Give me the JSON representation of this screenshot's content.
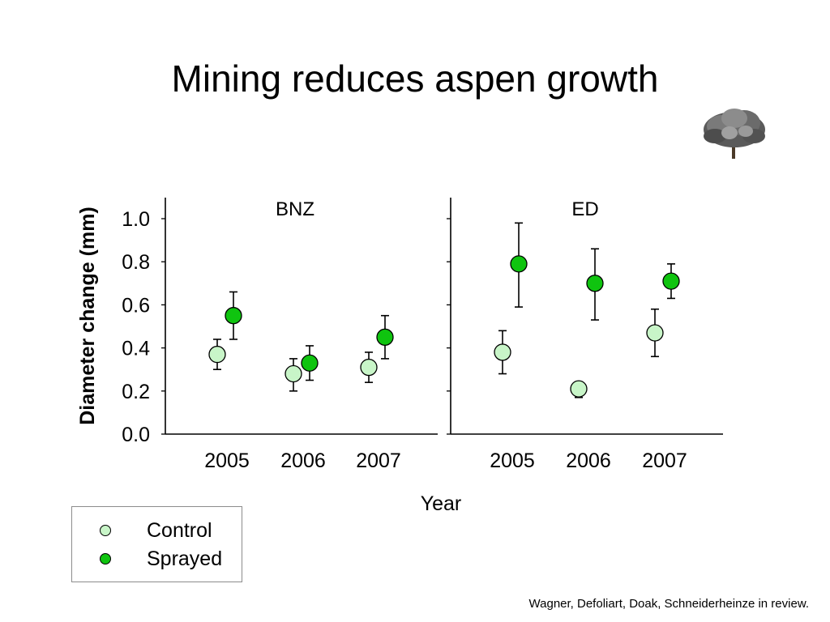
{
  "slide": {
    "title": "Mining reduces aspen growth",
    "citation": "Wagner, Defoliart, Doak, Schneiderheinze in review."
  },
  "legend": {
    "items": [
      {
        "label": "Control",
        "color": "#c8f5c8"
      },
      {
        "label": "Sprayed",
        "color": "#0fc40f"
      }
    ]
  },
  "chart_data": {
    "type": "scatter",
    "ylabel": "Diameter change (mm)",
    "xlabel": "Year",
    "ylim": [
      0.0,
      1.1
    ],
    "yticks": [
      "0.0",
      "0.2",
      "0.4",
      "0.6",
      "0.8",
      "1.0"
    ],
    "categories": [
      "2005",
      "2006",
      "2007"
    ],
    "grid": false,
    "legend_position": "bottom-left",
    "panels": [
      {
        "title": "BNZ",
        "series": [
          {
            "name": "Control",
            "color": "#c8f5c8",
            "values": [
              0.37,
              0.28,
              0.31
            ],
            "err_low": [
              0.3,
              0.2,
              0.24
            ],
            "err_high": [
              0.44,
              0.35,
              0.38
            ]
          },
          {
            "name": "Sprayed",
            "color": "#0fc40f",
            "values": [
              0.55,
              0.33,
              0.45
            ],
            "err_low": [
              0.44,
              0.25,
              0.35
            ],
            "err_high": [
              0.66,
              0.41,
              0.55
            ]
          }
        ]
      },
      {
        "title": "ED",
        "series": [
          {
            "name": "Control",
            "color": "#c8f5c8",
            "values": [
              0.38,
              0.21,
              0.47
            ],
            "err_low": [
              0.28,
              0.17,
              0.36
            ],
            "err_high": [
              0.48,
              0.21,
              0.58
            ]
          },
          {
            "name": "Sprayed",
            "color": "#0fc40f",
            "values": [
              0.79,
              0.7,
              0.71
            ],
            "err_low": [
              0.59,
              0.53,
              0.63
            ],
            "err_high": [
              0.98,
              0.86,
              0.79
            ]
          }
        ]
      }
    ]
  }
}
